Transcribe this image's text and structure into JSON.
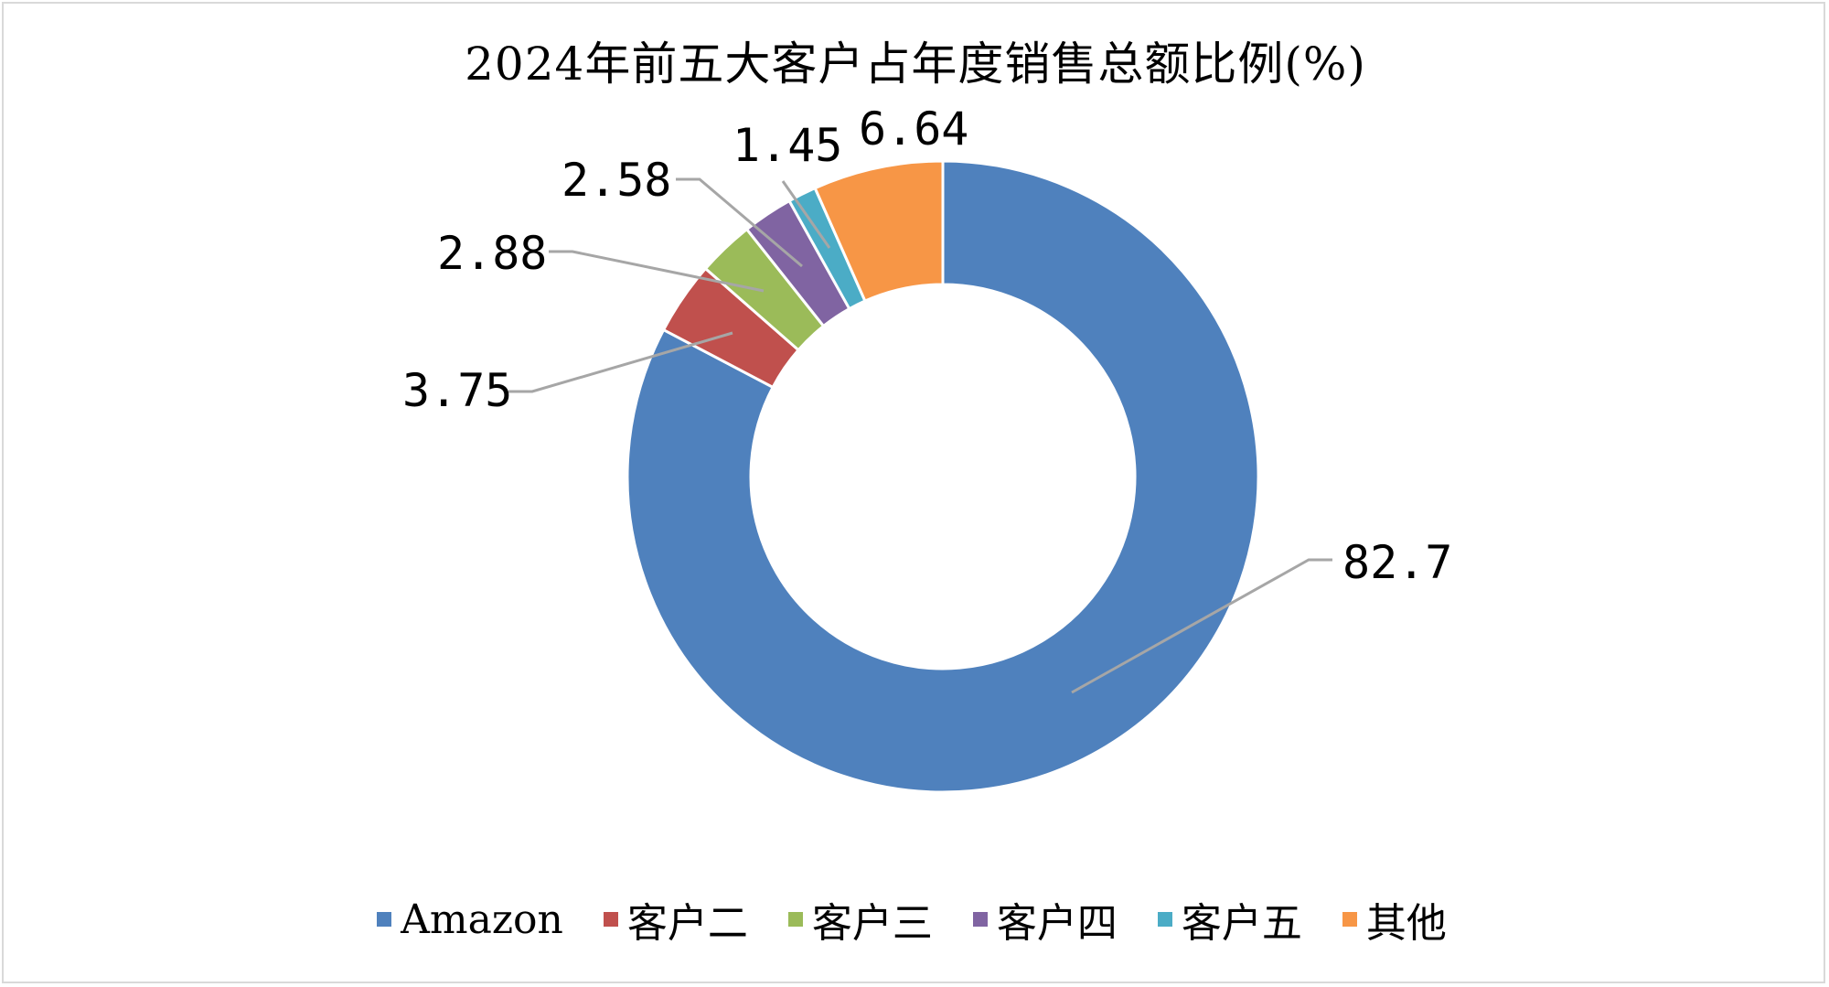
{
  "chart_data": {
    "type": "pie",
    "variant": "donut",
    "title": "2024年前五大客户占年度销售总额比例(%)",
    "series": [
      {
        "name": "Amazon",
        "value": 82.7,
        "label": "82.7",
        "color": "#4f81bd"
      },
      {
        "name": "客户二",
        "value": 3.75,
        "label": "3.75",
        "color": "#c0504d"
      },
      {
        "name": "客户三",
        "value": 2.88,
        "label": "2.88",
        "color": "#9bbb59"
      },
      {
        "name": "客户四",
        "value": 2.58,
        "label": "2.58",
        "color": "#8064a2"
      },
      {
        "name": "客户五",
        "value": 1.45,
        "label": "1.45",
        "color": "#4bacc6"
      },
      {
        "name": "其他",
        "value": 6.64,
        "label": "6.64",
        "color": "#f79646"
      }
    ],
    "legend_position": "bottom"
  }
}
